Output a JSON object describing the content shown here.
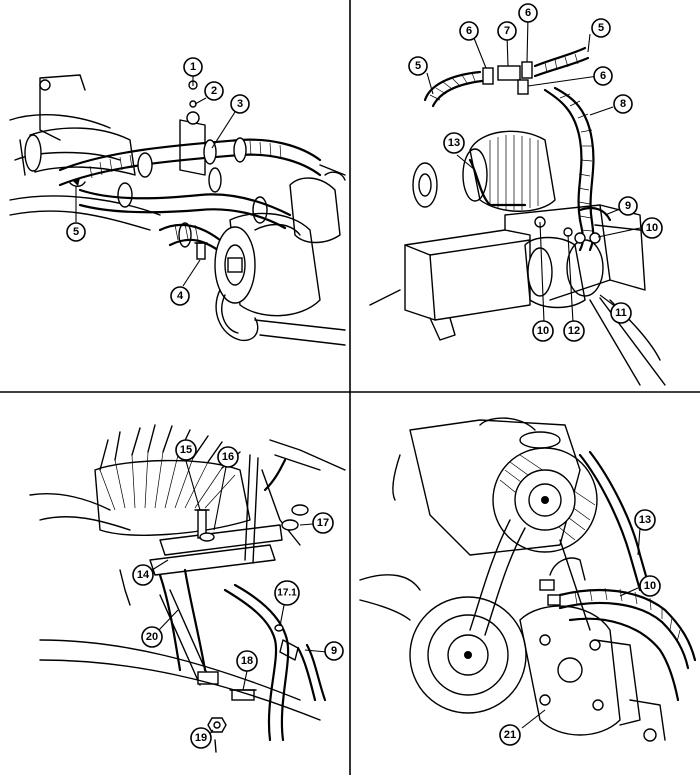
{
  "callouts": [
    {
      "id": "c1",
      "label": "1",
      "panel": "top-left"
    },
    {
      "id": "c2",
      "label": "2",
      "panel": "top-left"
    },
    {
      "id": "c3",
      "label": "3",
      "panel": "top-left"
    },
    {
      "id": "c4",
      "label": "4",
      "panel": "top-left"
    },
    {
      "id": "c5a",
      "label": "5",
      "panel": "top-left"
    },
    {
      "id": "c5b",
      "label": "5",
      "panel": "top-right"
    },
    {
      "id": "c5c",
      "label": "5",
      "panel": "top-right"
    },
    {
      "id": "c6a",
      "label": "6",
      "panel": "top-right"
    },
    {
      "id": "c6b",
      "label": "6",
      "panel": "top-right"
    },
    {
      "id": "c6c",
      "label": "6",
      "panel": "top-right"
    },
    {
      "id": "c7",
      "label": "7",
      "panel": "top-right"
    },
    {
      "id": "c8",
      "label": "8",
      "panel": "top-right"
    },
    {
      "id": "c9a",
      "label": "9",
      "panel": "top-right"
    },
    {
      "id": "c10a",
      "label": "10",
      "panel": "top-right"
    },
    {
      "id": "c10b",
      "label": "10",
      "panel": "top-right"
    },
    {
      "id": "c11",
      "label": "11",
      "panel": "top-right"
    },
    {
      "id": "c12",
      "label": "12",
      "panel": "top-right"
    },
    {
      "id": "c13a",
      "label": "13",
      "panel": "top-right"
    },
    {
      "id": "c15",
      "label": "15",
      "panel": "bottom-left"
    },
    {
      "id": "c16",
      "label": "16",
      "panel": "bottom-left"
    },
    {
      "id": "c17",
      "label": "17",
      "panel": "bottom-left"
    },
    {
      "id": "c171",
      "label": "17.1",
      "panel": "bottom-left"
    },
    {
      "id": "c9b",
      "label": "9",
      "panel": "bottom-left"
    },
    {
      "id": "c14",
      "label": "14",
      "panel": "bottom-left"
    },
    {
      "id": "c20",
      "label": "20",
      "panel": "bottom-left"
    },
    {
      "id": "c18",
      "label": "18",
      "panel": "bottom-left"
    },
    {
      "id": "c19",
      "label": "19",
      "panel": "bottom-left"
    },
    {
      "id": "c13b",
      "label": "13",
      "panel": "bottom-right"
    },
    {
      "id": "c10c",
      "label": "10",
      "panel": "bottom-right"
    },
    {
      "id": "c21",
      "label": "21",
      "panel": "bottom-right"
    }
  ]
}
